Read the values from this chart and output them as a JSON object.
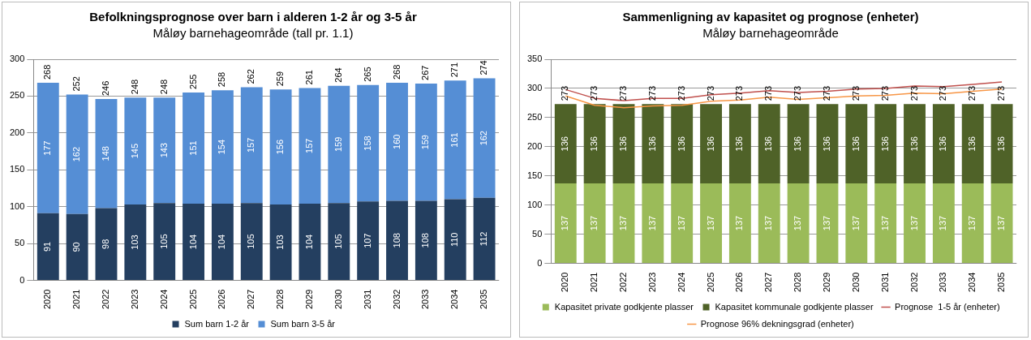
{
  "chart_data": [
    {
      "type": "bar",
      "title": "Befolkningsprognose over barn i alderen 1-2 år og 3-5 år",
      "subtitle": "Måløy barnehageområde (tall pr. 1.1)",
      "categories": [
        "2020",
        "2021",
        "2022",
        "2023",
        "2024",
        "2025",
        "2026",
        "2027",
        "2028",
        "2029",
        "2030",
        "2031",
        "2032",
        "2033",
        "2034",
        "2035"
      ],
      "stacked": true,
      "ylim": [
        0,
        300
      ],
      "yticks": [
        0,
        50,
        100,
        150,
        200,
        250,
        300
      ],
      "grid": "y",
      "legend": "bottom",
      "series": [
        {
          "name": "Sum barn 1-2 år",
          "color": "#243f60",
          "values": [
            91,
            90,
            98,
            103,
            105,
            104,
            104,
            105,
            103,
            104,
            105,
            107,
            108,
            108,
            110,
            112
          ],
          "value_labels": [
            "91",
            "90",
            "98",
            "103",
            "105",
            "104",
            "104",
            "105",
            "103",
            "104",
            "105",
            "107",
            "108",
            "108",
            "110",
            "112"
          ]
        },
        {
          "name": "Sum barn 3-5 år",
          "color": "#558ed5",
          "values": [
            177,
            162,
            148,
            145,
            143,
            151,
            154,
            157,
            156,
            157,
            159,
            158,
            160,
            159,
            161,
            162
          ],
          "value_labels": [
            "177",
            "162",
            "148",
            "145",
            "143",
            "151",
            "154",
            "157",
            "156",
            "157",
            "159",
            "158",
            "160",
            "159",
            "161",
            "162"
          ]
        }
      ],
      "totals": [
        "268",
        "252",
        "246",
        "248",
        "248",
        "255",
        "258",
        "262",
        "259",
        "261",
        "264",
        "265",
        "268",
        "267",
        "271",
        "274"
      ]
    },
    {
      "type": "bar",
      "title": "Sammenligning av kapasitet og prognose (enheter)",
      "subtitle": "Måløy barnehageområde",
      "categories": [
        "2020",
        "2021",
        "2022",
        "2023",
        "2024",
        "2025",
        "2026",
        "2027",
        "2028",
        "2029",
        "2030",
        "2031",
        "2032",
        "2033",
        "2034",
        "2035"
      ],
      "stacked": true,
      "ylim": [
        0,
        350
      ],
      "yticks": [
        0,
        50,
        100,
        150,
        200,
        250,
        300,
        350
      ],
      "grid": "y",
      "legend": "bottom",
      "marker": "none",
      "series": [
        {
          "name": "Kapasitet private godkjente plasser",
          "color": "#9bbb59",
          "values": [
            137,
            137,
            137,
            137,
            137,
            137,
            137,
            137,
            137,
            137,
            137,
            137,
            137,
            137,
            137,
            137
          ],
          "value_labels": [
            "137",
            "137",
            "137",
            "137",
            "137",
            "137",
            "137",
            "137",
            "137",
            "137",
            "137",
            "137",
            "137",
            "137",
            "137",
            "137"
          ]
        },
        {
          "name": "Kapasitet kommunale godkjente plasser",
          "color": "#4f6228",
          "values": [
            136,
            136,
            136,
            136,
            136,
            136,
            136,
            136,
            136,
            136,
            136,
            136,
            136,
            136,
            136,
            136
          ],
          "value_labels": [
            "136",
            "136",
            "136",
            "136",
            "136",
            "136",
            "136",
            "136",
            "136",
            "136",
            "136",
            "136",
            "136",
            "136",
            "136",
            "136"
          ]
        },
        {
          "name": "Prognose  1-5 år (enheter)",
          "type": "line",
          "color": "#c0504d",
          "values": [
            298,
            283,
            279,
            283,
            283,
            289,
            292,
            296,
            293,
            295,
            299,
            300,
            304,
            303,
            307,
            311
          ]
        },
        {
          "name": "Prognose 96% dekningsgrad (enheter)",
          "type": "line",
          "color": "#f79646",
          "values": [
            287,
            271,
            267,
            270,
            271,
            278,
            280,
            285,
            281,
            284,
            287,
            288,
            292,
            291,
            295,
            299
          ]
        }
      ],
      "totals": [
        "273",
        "273",
        "273",
        "273",
        "273",
        "273",
        "273",
        "273",
        "273",
        "273",
        "273",
        "273",
        "273",
        "273",
        "273",
        "273"
      ]
    }
  ]
}
